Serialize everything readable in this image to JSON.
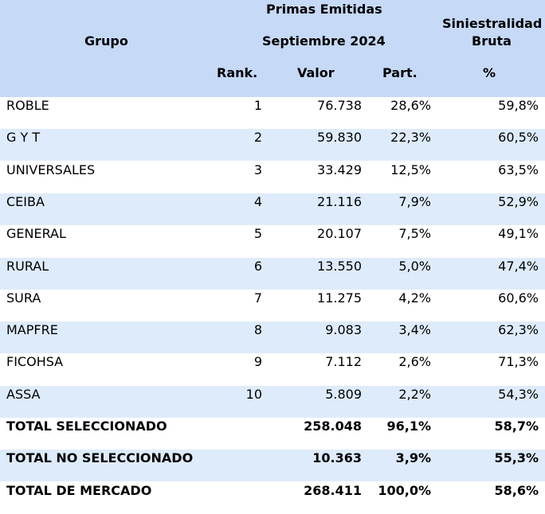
{
  "header": {
    "group_label": "Grupo",
    "primas_line1": "Primas Emitidas",
    "primas_line2": "Septiembre 2024",
    "sini_line1": "Siniestralidad",
    "sini_line2": "Bruta",
    "rank_label": "Rank.",
    "valor_label": "Valor",
    "part_label": "Part.",
    "pct_label": "%"
  },
  "rows": [
    {
      "name": "ROBLE",
      "rank": "1",
      "valor": "76.738",
      "part": "28,6%",
      "sini": "59,8%"
    },
    {
      "name": "G Y T",
      "rank": "2",
      "valor": "59.830",
      "part": "22,3%",
      "sini": "60,5%"
    },
    {
      "name": "UNIVERSALES",
      "rank": "3",
      "valor": "33.429",
      "part": "12,5%",
      "sini": "63,5%"
    },
    {
      "name": "CEIBA",
      "rank": "4",
      "valor": "21.116",
      "part": "7,9%",
      "sini": "52,9%"
    },
    {
      "name": "GENERAL",
      "rank": "5",
      "valor": "20.107",
      "part": "7,5%",
      "sini": "49,1%"
    },
    {
      "name": "RURAL",
      "rank": "6",
      "valor": "13.550",
      "part": "5,0%",
      "sini": "47,4%"
    },
    {
      "name": "SURA",
      "rank": "7",
      "valor": "11.275",
      "part": "4,2%",
      "sini": "60,6%"
    },
    {
      "name": "MAPFRE",
      "rank": "8",
      "valor": "9.083",
      "part": "3,4%",
      "sini": "62,3%"
    },
    {
      "name": "FICOHSA",
      "rank": "9",
      "valor": "7.112",
      "part": "2,6%",
      "sini": "71,3%"
    },
    {
      "name": "ASSA",
      "rank": "10",
      "valor": "5.809",
      "part": "2,2%",
      "sini": "54,3%"
    }
  ],
  "totals": [
    {
      "name": "TOTAL SELECCIONADO",
      "rank": "",
      "valor": "258.048",
      "part": "96,1%",
      "sini": "58,7%"
    },
    {
      "name": "TOTAL NO SELECCIONADO",
      "rank": "",
      "valor": "10.363",
      "part": "3,9%",
      "sini": "55,3%"
    },
    {
      "name": "TOTAL DE MERCADO",
      "rank": "",
      "valor": "268.411",
      "part": "100,0%",
      "sini": "58,6%"
    }
  ],
  "colors": {
    "header_bg": "#c6d9f7",
    "stripe_bg": "#deebfb",
    "row_bg": "#ffffff"
  }
}
